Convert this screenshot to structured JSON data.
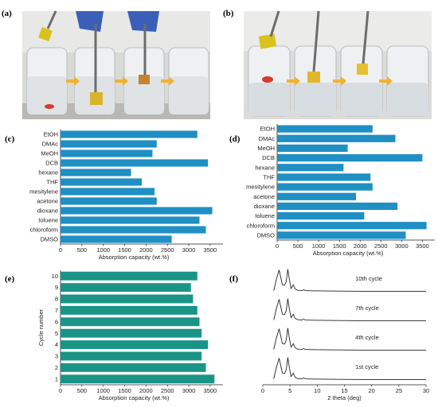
{
  "panels": {
    "a": "(a)",
    "b": "(b)",
    "c": "(c)",
    "d": "(d)",
    "e": "(e)",
    "f": "(f)"
  },
  "colors": {
    "bar_blue": "#1f8fc4",
    "bar_teal": "#1a9487",
    "arrow": "#f2b230",
    "line": "#222222"
  },
  "chart_data": [
    {
      "id": "c",
      "type": "bar",
      "orientation": "horizontal",
      "categories": [
        "EtOH",
        "DMAc",
        "MeOH",
        "DCB",
        "hexane",
        "THF",
        "mesitylene",
        "acetone",
        "dioxane",
        "toluene",
        "chloroform",
        "DMSO"
      ],
      "values": [
        3200,
        2250,
        2150,
        3450,
        1650,
        1900,
        2200,
        2250,
        3550,
        3250,
        3400,
        2600
      ],
      "xlabel": "Absorption capacity (wt.%)",
      "xlim": [
        0,
        3800
      ],
      "xticks": [
        0,
        500,
        1000,
        1500,
        2000,
        2500,
        3000,
        3500
      ]
    },
    {
      "id": "d",
      "type": "bar",
      "orientation": "horizontal",
      "categories": [
        "EtOH",
        "DMAc",
        "MeOH",
        "DCB",
        "hexane",
        "THF",
        "mesitylene",
        "acetone",
        "dioxane",
        "toluene",
        "chloroform",
        "DMSO"
      ],
      "values": [
        2300,
        2850,
        1700,
        3500,
        1600,
        2250,
        2300,
        1900,
        2900,
        2100,
        3600,
        3100
      ],
      "xlabel": "Absorption capacity (wt.%)",
      "xlim": [
        0,
        3800
      ],
      "xticks": [
        0,
        500,
        1000,
        1500,
        2000,
        2500,
        3000,
        3500
      ]
    },
    {
      "id": "e",
      "type": "bar",
      "orientation": "horizontal",
      "categories": [
        "10",
        "9",
        "8",
        "7",
        "6",
        "5",
        "4",
        "3",
        "2",
        "1"
      ],
      "values": [
        3200,
        3050,
        3100,
        3200,
        3250,
        3300,
        3450,
        3300,
        3400,
        3600
      ],
      "xlabel": "Absorption capacity (wt.%)",
      "ylabel": "Cycle number",
      "xlim": [
        0,
        3800
      ],
      "xticks": [
        0,
        500,
        1000,
        1500,
        2000,
        2500,
        3000,
        3500
      ]
    },
    {
      "id": "f",
      "type": "line",
      "xlabel": "2 theta (deg)",
      "xlim": [
        0,
        30
      ],
      "xticks": [
        0,
        5,
        10,
        15,
        20,
        25,
        30
      ],
      "series": [
        {
          "name": "10th cycle"
        },
        {
          "name": "7th cycle"
        },
        {
          "name": "4th cycle"
        },
        {
          "name": "1st cycle"
        }
      ],
      "pattern": {
        "x": [
          2.0,
          2.5,
          3.0,
          3.3,
          3.6,
          4.0,
          4.3,
          4.6,
          4.9,
          5.2,
          5.6,
          5.9,
          6.2,
          6.6,
          7.2,
          7.5,
          7.8,
          9.0,
          12,
          18,
          25,
          30
        ],
        "intensity": [
          0.05,
          0.55,
          0.95,
          0.62,
          0.3,
          0.28,
          0.45,
          0.98,
          0.5,
          0.15,
          0.3,
          0.14,
          0.08,
          0.06,
          0.05,
          0.09,
          0.05,
          0.04,
          0.03,
          0.02,
          0.02,
          0.02
        ]
      }
    }
  ]
}
